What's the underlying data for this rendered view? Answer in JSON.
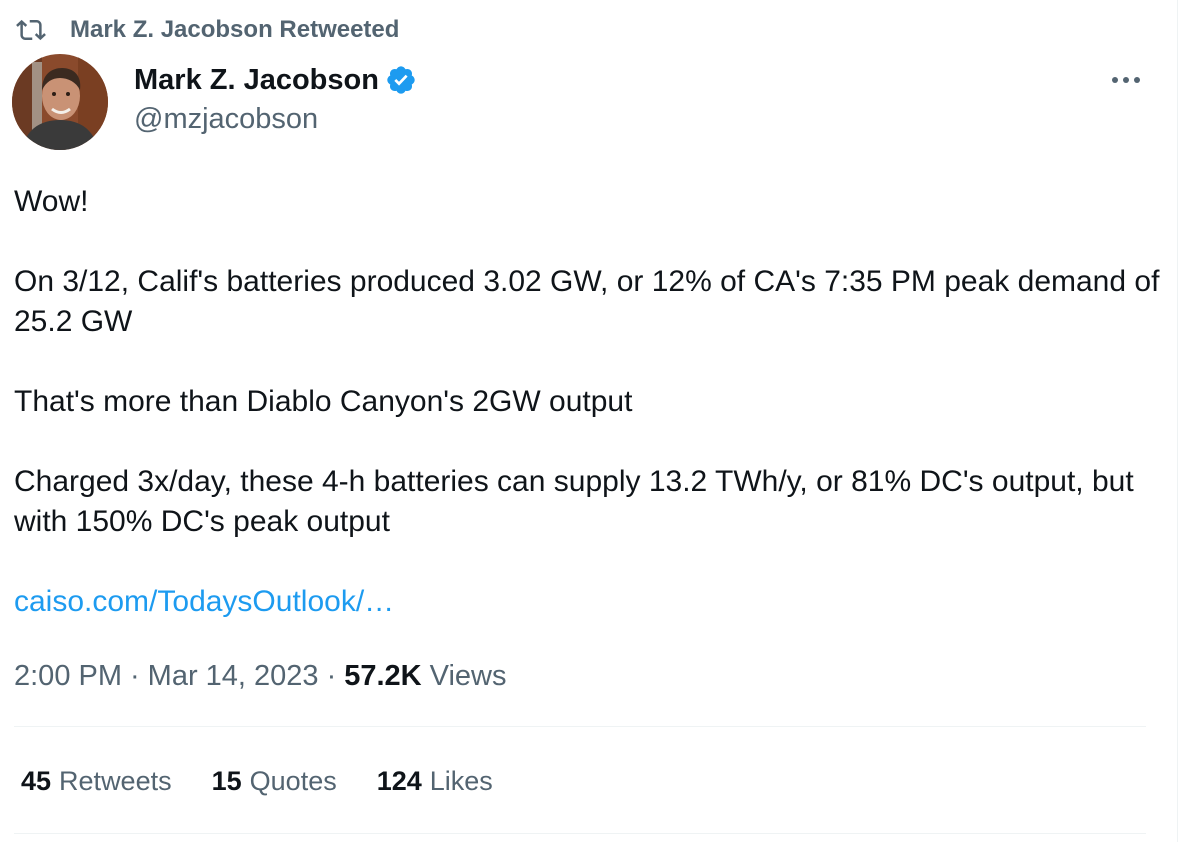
{
  "retweet_header": {
    "text": "Mark Z. Jacobson Retweeted",
    "icon": "retweet-icon"
  },
  "author": {
    "name": "Mark Z. Jacobson",
    "handle": "@mzjacobson",
    "verified": true,
    "badge_color": "#1d9bf0"
  },
  "tweet": {
    "paragraphs": [
      "Wow!",
      "On 3/12, Calif's batteries produced 3.02 GW, or 12% of CA's 7:35 PM peak demand of 25.2 GW",
      "That's more than Diablo Canyon's 2GW output",
      "Charged 3x/day, these 4-h batteries can supply 13.2 TWh/y, or 81% DC's output, but with 150% DC's peak output"
    ],
    "link": "caiso.com/TodaysOutlook/…"
  },
  "meta": {
    "time": "2:00 PM",
    "separator": "·",
    "date": "Mar 14, 2023",
    "views_count": "57.2K",
    "views_label": "Views"
  },
  "stats": {
    "retweets": {
      "count": "45",
      "label": "Retweets"
    },
    "quotes": {
      "count": "15",
      "label": "Quotes"
    },
    "likes": {
      "count": "124",
      "label": "Likes"
    }
  },
  "colors": {
    "text_primary": "#0f1419",
    "text_secondary": "#536471",
    "link": "#1d9bf0",
    "divider": "#eff3f4"
  }
}
